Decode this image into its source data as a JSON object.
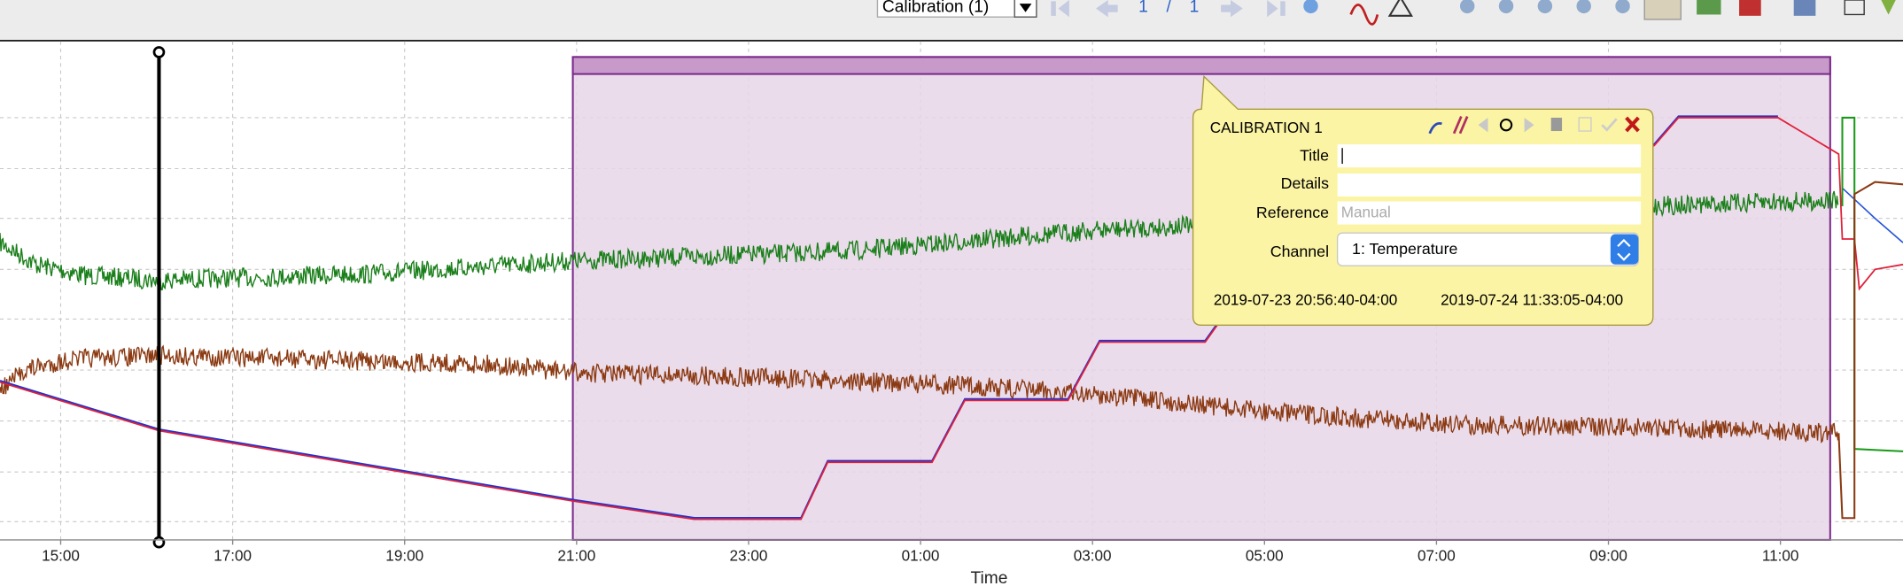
{
  "toolbar": {
    "selector": "Calibration (1)",
    "page": "1",
    "page_separator": "/",
    "page_total": "1"
  },
  "chart": {
    "xticks": [
      "15:00",
      "17:00",
      "19:00",
      "21:00",
      "23:00",
      "01:00",
      "03:00",
      "05:00",
      "07:00",
      "09:00",
      "11:00"
    ],
    "x_title": "Time"
  },
  "popup": {
    "heading": "CALIBRATION 1",
    "labels": [
      "Title",
      "Details",
      "Reference",
      "Channel"
    ],
    "reference_placeholder": "Manual",
    "channel": "1: Temperature",
    "start": "2019-07-23 20:56:40-04:00",
    "end": "2019-07-24 11:33:05-04:00"
  }
}
